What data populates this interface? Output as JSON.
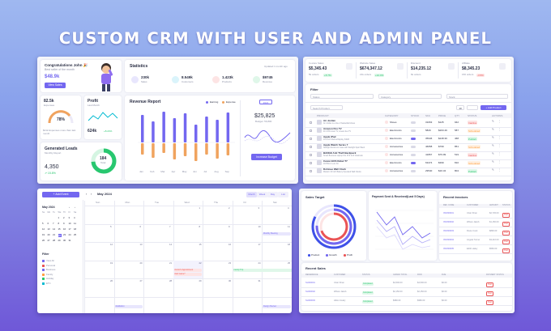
{
  "banner_title": "CUSTOM CRM WITH USER AND ADMIN PANEL",
  "colors": {
    "accent": "#7367f0",
    "orange": "#f0a35e",
    "green": "#28c76f",
    "red": "#ea5455"
  },
  "dashboard": {
    "congrats": {
      "title": "Congratulations John 🎉",
      "subtitle": "Best seller of the month",
      "value": "$48.9k",
      "button": "View Sales"
    },
    "statistics": {
      "title": "Statistics",
      "updated": "Updated 1 month ago",
      "items": [
        {
          "value": "230k",
          "label": "Sales"
        },
        {
          "value": "8.549k",
          "label": "Customers"
        },
        {
          "value": "1.423k",
          "label": "Products"
        },
        {
          "value": "$9745",
          "label": "Revenue"
        }
      ]
    },
    "expenses": {
      "value": "82.5k",
      "label": "Expenses",
      "percent": "78%",
      "note": "$21k Expenses more than last month"
    },
    "profit": {
      "title": "Profit",
      "subtitle": "Last Month",
      "value": "624k",
      "change": "+8.24%"
    },
    "leads": {
      "title": "Generated Leads",
      "subtitle": "Monthly Report",
      "value": "4,350",
      "change": "↗ 15.8%",
      "center_value": "184",
      "center_label": "Total"
    },
    "revenue_report": {
      "title": "Revenue Report",
      "legend": [
        "Earning",
        "Expense"
      ],
      "months": [
        "Jan",
        "Feb",
        "Mar",
        "Apr",
        "May",
        "Jun",
        "Jul",
        "Aug",
        "Sep"
      ],
      "year_button": "2021",
      "budget": "$25,825",
      "budget_label": "Budget: 56,800",
      "increase_button": "Increase Budget"
    }
  },
  "products": {
    "stats": [
      {
        "title": "In-store Sales",
        "value": "$5,345.43",
        "sub": "5k orders",
        "badge": "+5.7%"
      },
      {
        "title": "Website Sales",
        "value": "$674,347.12",
        "sub": "21k orders",
        "badge": "+12.4%"
      },
      {
        "title": "Discount",
        "value": "$14,235.12",
        "sub": "6k orders",
        "badge": ""
      },
      {
        "title": "Affiliate",
        "value": "$8,345.23",
        "sub": "150 orders",
        "badge": "-3.5%"
      }
    ],
    "filter_title": "Filter",
    "filters": [
      "Status",
      "Category",
      "Stock"
    ],
    "search_placeholder": "Search Product",
    "page_size": "10",
    "add_button": "+ Add Product",
    "columns": [
      "PRODUCT",
      "CATEGORY",
      "STOCK",
      "SKU",
      "PRICE",
      "QTY",
      "STATUS",
      "ACTIONS"
    ],
    "rows": [
      {
        "name": "Air Jordan",
        "desc": "Air Jordan is a line of basketball shoes",
        "category": "Shoes",
        "sku": "31063",
        "price": "$125",
        "qty": "942",
        "status": "Inactive"
      },
      {
        "name": "Amazon Fire TV",
        "desc": "4K UHD smart TV, stream live TV",
        "category": "Electronics",
        "sku": "5829",
        "price": "$263.49",
        "qty": "587",
        "status": "Scheduled"
      },
      {
        "name": "Apple iPad",
        "desc": "10.2-inch Retina Display, 64GB",
        "category": "Electronics",
        "sku": "35946",
        "price": "$248.39",
        "qty": "468",
        "status": "Publish"
      },
      {
        "name": "Apple Watch Series 7",
        "desc": "Starlight Aluminum Case with Starlight Sport Band",
        "category": "Accessories",
        "sku": "46658",
        "price": "$799",
        "qty": "851",
        "status": "Scheduled"
      },
      {
        "name": "BANGE Anti Theft Backpack",
        "desc": "Smart Business Laptop Fits 15.6 Inch Notebook",
        "category": "Accessories",
        "sku": "41867",
        "price": "$79.99",
        "qty": "519",
        "status": "Inactive"
      },
      {
        "name": "Canon EOS Rebel T7",
        "desc": "18-55mm Lens Kit",
        "category": "Electronics",
        "sku": "63474",
        "price": "$399",
        "qty": "810",
        "status": "Scheduled"
      },
      {
        "name": "Dohioue Wall Clock",
        "desc": "Modern 10 Inch Battery Operated Wall Clocks",
        "category": "Accessories",
        "sku": "29540",
        "price": "$16.34",
        "qty": "804",
        "status": "Publish"
      }
    ]
  },
  "calendar": {
    "add_button": "+ Add Event",
    "month_title": "May 2024",
    "views": [
      "Month",
      "Week",
      "Day",
      "List"
    ],
    "mini_month": "May 2024",
    "mini_days": [
      "Su",
      "Mo",
      "Tu",
      "We",
      "Th",
      "Fr",
      "Sa"
    ],
    "filter_title": "Filter",
    "filters": [
      "View All",
      "Personal",
      "Business",
      "Family",
      "Holiday",
      "ETC"
    ],
    "weekdays": [
      "Sun",
      "Mon",
      "Tue",
      "Wed",
      "Thu",
      "Fri",
      "Sat"
    ],
    "events": [
      {
        "label": "Doctor's Appointment"
      },
      {
        "label": "Dart Game?"
      },
      {
        "label": "Family Trip"
      },
      {
        "label": "Meditation"
      },
      {
        "label": "Design Review"
      },
      {
        "label": "Monthly Meeting"
      }
    ]
  },
  "reports": {
    "sales_target": {
      "title": "Sales Target",
      "legend": [
        "Product",
        "Growth",
        "Profit"
      ]
    },
    "payment": {
      "title": "Payment Sent & Received(Last 5 Days)"
    },
    "invoices": {
      "title": "Recent Invoices",
      "columns": [
        "REF. CODE",
        "CUSTOMER",
        "AMOUNT",
        "STATUS"
      ],
      "rows": [
        {
          "ref": "INV000001",
          "customer": "Uzair Khan",
          "amount": "$2,745.00",
          "status": "Paid"
        },
        {
          "ref": "INV000002",
          "customer": "Wilson Jakob",
          "amount": "$1,150.00",
          "status": "Paid"
        },
        {
          "ref": "INV000003",
          "customer": "Roxie Cook",
          "amount": "$890.00",
          "status": "Paid"
        },
        {
          "ref": "INV000004",
          "customer": "Angela Turner",
          "amount": "$3,210.00",
          "status": "Paid"
        },
        {
          "ref": "INV000005",
          "customer": "Edith Haley",
          "amount": "$560.00",
          "status": "Paid"
        }
      ]
    },
    "recent_sales": {
      "title": "Recent Sales",
      "columns": [
        "REFERENCE",
        "CUSTOMER",
        "STATUS",
        "GRAND TOTAL",
        "PAID",
        "DUE",
        "PAYMENT STATUS"
      ],
      "rows": [
        {
          "ref": "SL000001",
          "customer": "Uzair Khan",
          "status": "Completed",
          "total": "$4,500.00",
          "paid": "$4,500.00",
          "due": "$0.00",
          "payment": "Paid"
        },
        {
          "ref": "SL000002",
          "customer": "Wilson Jakob",
          "status": "Completed",
          "total": "$2,150.00",
          "paid": "$2,150.00",
          "due": "$0.00",
          "payment": "Paid"
        },
        {
          "ref": "SL000003",
          "customer": "Hilton Grady",
          "status": "Completed",
          "total": "$980.00",
          "paid": "$980.00",
          "due": "$0.00",
          "payment": "Paid"
        }
      ]
    }
  }
}
